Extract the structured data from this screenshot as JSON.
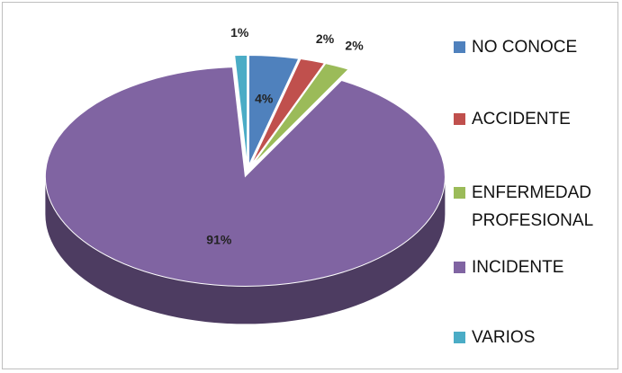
{
  "chart_data": {
    "type": "pie",
    "categories": [
      "NO CONOCE",
      "ACCIDENTE",
      "ENFERMEDAD PROFESIONAL",
      "INCIDENTE",
      "VARIOS"
    ],
    "values": [
      4,
      2,
      2,
      91,
      1
    ],
    "value_labels": [
      "4%",
      "2%",
      "2%",
      "91%",
      "1%"
    ],
    "colors": [
      "#4f81bd",
      "#c0504d",
      "#9bbb59",
      "#8064a2",
      "#4bacc6"
    ],
    "legend": "right"
  }
}
